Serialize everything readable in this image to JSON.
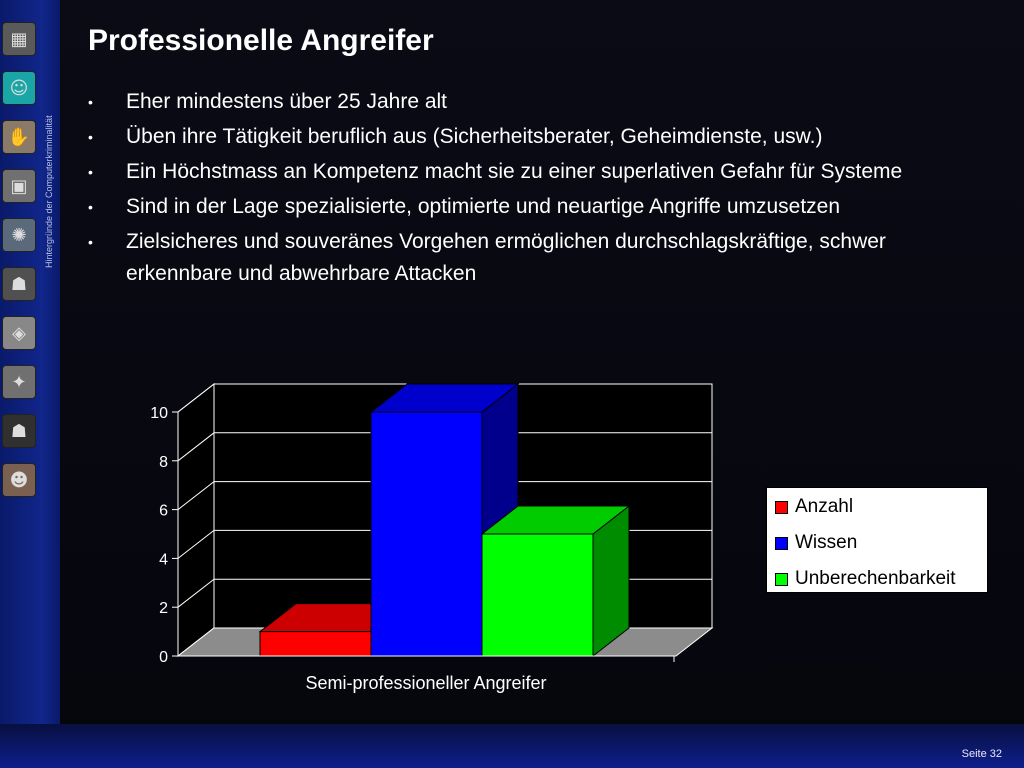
{
  "slide": {
    "title": "Professionelle Angreifer",
    "side_caption": "Hintergründe der Computerkriminalität",
    "slide_number": "Seite 32",
    "bullets": [
      "Eher mindestens über 25 Jahre alt",
      "Üben ihre Tätigkeit beruflich aus (Sicherheitsberater, Geheimdienste, usw.)",
      "Ein Höchstmass an Kompetenz macht sie zu einer superlativen Gefahr für Systeme",
      "Sind in der Lage spezialisierte, optimierte und neuartige Angriffe umzusetzen",
      "Zielsicheres und souveränes Vorgehen ermöglichen durchschlagskräftige, schwer erkennbare und abwehrbare Attacken"
    ]
  },
  "sidebar": {
    "icons": [
      "circuit-icon",
      "face-icon",
      "hands-icon",
      "computer-icon",
      "swirl-icon",
      "mask-icon",
      "cube-icon",
      "figure-icon",
      "hooded-icon",
      "jester-icon"
    ]
  },
  "chart_data": {
    "type": "bar",
    "title": "",
    "xlabel": "",
    "ylabel": "",
    "categories": [
      "Semi-professioneller Angreifer"
    ],
    "series": [
      {
        "name": "Anzahl",
        "values": [
          1
        ],
        "color": "#ff0000"
      },
      {
        "name": "Wissen",
        "values": [
          10
        ],
        "color": "#0000ff"
      },
      {
        "name": "Unberechenbarkeit",
        "values": [
          5
        ],
        "color": "#00ff00"
      }
    ],
    "ylim": [
      0,
      10
    ],
    "yticks": [
      "0",
      "2",
      "4",
      "6",
      "8",
      "10"
    ],
    "grid": true,
    "legend": "right",
    "three_d": true
  }
}
